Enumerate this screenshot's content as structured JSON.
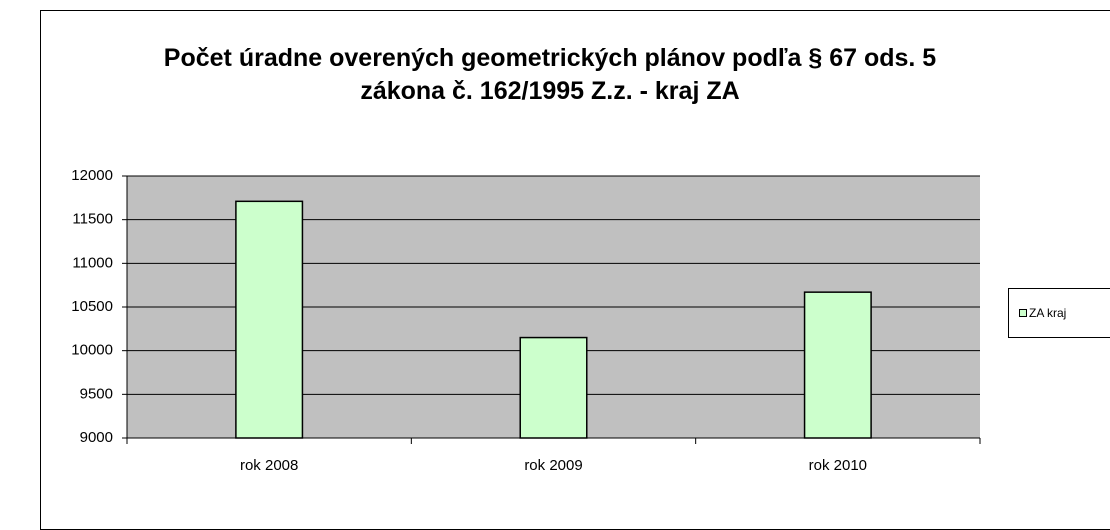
{
  "chart_data": {
    "type": "bar",
    "title": "Počet úradne overených geometrických plánov podľa § 67 ods. 5 zákona č. 162/1995 Z.z. - kraj ZA",
    "categories": [
      "rok 2008",
      "rok 2009",
      "rok 2010"
    ],
    "series": [
      {
        "name": "ZA kraj",
        "color": "#ccffcc",
        "values": [
          11710,
          10150,
          10670
        ]
      }
    ],
    "ylim": [
      9000,
      12000
    ],
    "yticks": [
      9000,
      9500,
      10000,
      10500,
      11000,
      11500,
      12000
    ],
    "grid": true,
    "legend": "right"
  }
}
